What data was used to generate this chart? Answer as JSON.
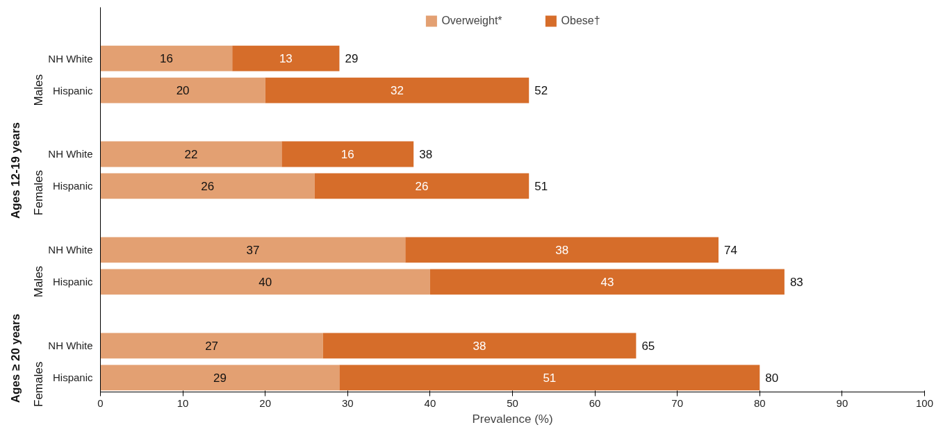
{
  "chart_data": {
    "type": "bar",
    "orientation": "horizontal",
    "stacked": true,
    "xlabel": "Prevalence (%)",
    "categories": [
      "NH White",
      "Hispanic",
      "NH White",
      "Hispanic",
      "NH White",
      "Hispanic",
      "NH White",
      "Hispanic"
    ],
    "series": [
      {
        "name": "Overweight*",
        "color": "#e3a072",
        "values": [
          16,
          20,
          22,
          26,
          37,
          40,
          27,
          29
        ]
      },
      {
        "name": "Obese†",
        "color": "#d66d2a",
        "values": [
          13,
          32,
          16,
          26,
          38,
          43,
          38,
          51
        ]
      }
    ],
    "totals": [
      "29",
      "52",
      "38",
      "51",
      "74",
      "83",
      "65",
      "80"
    ],
    "data_labels": true,
    "annotations": [
      "Males",
      "Females",
      "Males",
      "Females",
      "Ages 12-19 years",
      "Ages ≥ 20 years"
    ],
    "xlim": [
      0,
      100
    ],
    "xticks": [
      0,
      10,
      20,
      30,
      40,
      50,
      60,
      70,
      80,
      90,
      100
    ],
    "grid": false,
    "legend": "top"
  }
}
